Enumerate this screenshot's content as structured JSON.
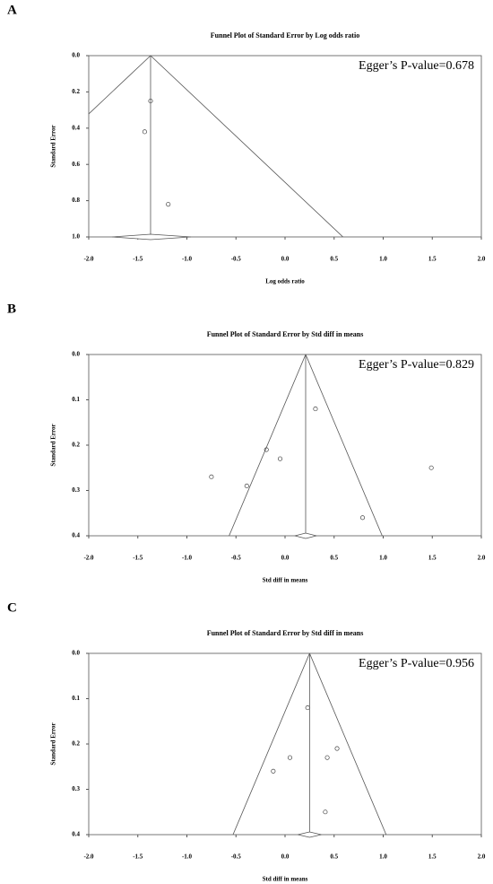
{
  "chart_data": [
    {
      "type": "scatter",
      "panel": "A",
      "title": "Funnel Plot of Standard Error by Log odds ratio",
      "xlabel": "Log odds ratio",
      "ylabel": "Standard Error",
      "annotation": "Egger’s P-value=0.678",
      "x": [
        -1.37,
        -1.43,
        -1.19
      ],
      "y": [
        0.25,
        0.42,
        0.82
      ],
      "summary": {
        "estimate": -1.37,
        "ci": [
          -1.76,
          -0.96
        ]
      },
      "funnel": {
        "apex": -1.37,
        "bottom_left": -3.33,
        "bottom_right": 0.59
      },
      "xlim": [
        -2,
        2
      ],
      "ylim": [
        0,
        1
      ],
      "y_inverted": true,
      "xticks": [
        {
          "value": -2,
          "label": "-2.0"
        },
        {
          "value": -1.5,
          "label": "-1.5"
        },
        {
          "value": -1,
          "label": "-1.0"
        },
        {
          "value": -0.5,
          "label": "-0.5"
        },
        {
          "value": 0,
          "label": "0.0"
        },
        {
          "value": 0.5,
          "label": "0.5"
        },
        {
          "value": 1,
          "label": "1.0"
        },
        {
          "value": 1.5,
          "label": "1.5"
        },
        {
          "value": 2,
          "label": "2.0"
        }
      ],
      "yticks": [
        {
          "value": 0,
          "label": "0.0"
        },
        0.2,
        0.4,
        0.6,
        0.8,
        {
          "value": 1,
          "label": "1.0"
        }
      ]
    },
    {
      "type": "scatter",
      "panel": "B",
      "title": "Funnel Plot of Standard Error by Std diff in means",
      "xlabel": "Std diff in means",
      "ylabel": "Standard Error",
      "annotation": "Egger’s P-value=0.829",
      "x": [
        0.31,
        -0.19,
        -0.05,
        -0.75,
        -0.39,
        0.79,
        1.49
      ],
      "y": [
        0.12,
        0.21,
        0.23,
        0.27,
        0.29,
        0.36,
        0.25
      ],
      "summary": {
        "estimate": 0.21,
        "ci": [
          0.1,
          0.32
        ]
      },
      "funnel": {
        "apex": 0.21,
        "bottom_left": -0.57,
        "bottom_right": 0.99
      },
      "xlim": [
        -2,
        2
      ],
      "ylim": [
        0,
        0.4
      ],
      "y_inverted": true,
      "xticks": [
        {
          "value": -2,
          "label": "-2.0"
        },
        {
          "value": -1.5,
          "label": "-1.5"
        },
        {
          "value": -1,
          "label": "-1.0"
        },
        {
          "value": -0.5,
          "label": "-0.5"
        },
        {
          "value": 0,
          "label": "0.0"
        },
        {
          "value": 0.5,
          "label": "0.5"
        },
        {
          "value": 1,
          "label": "1.0"
        },
        {
          "value": 1.5,
          "label": "1.5"
        },
        {
          "value": 2,
          "label": "2.0"
        }
      ],
      "yticks": [
        {
          "value": 0,
          "label": "0.0"
        },
        0.1,
        0.2,
        0.3,
        0.4
      ]
    },
    {
      "type": "scatter",
      "panel": "C",
      "title": "Funnel Plot of Standard Error by Std diff in means",
      "xlabel": "Std diff in means",
      "ylabel": "Standard Error",
      "annotation": "Egger’s P-value=0.956",
      "x": [
        0.23,
        0.05,
        -0.12,
        0.43,
        0.53,
        0.41
      ],
      "y": [
        0.12,
        0.23,
        0.26,
        0.23,
        0.21,
        0.35
      ],
      "summary": {
        "estimate": 0.25,
        "ci": [
          0.13,
          0.37
        ]
      },
      "funnel": {
        "apex": 0.25,
        "bottom_left": -0.53,
        "bottom_right": 1.03
      },
      "xlim": [
        -2,
        2
      ],
      "ylim": [
        0,
        0.4
      ],
      "y_inverted": true,
      "xticks": [
        {
          "value": -2,
          "label": "-2.0"
        },
        {
          "value": -1.5,
          "label": "-1.5"
        },
        {
          "value": -1,
          "label": "-1.0"
        },
        {
          "value": -0.5,
          "label": "-0.5"
        },
        {
          "value": 0,
          "label": "0.0"
        },
        {
          "value": 0.5,
          "label": "0.5"
        },
        {
          "value": 1,
          "label": "1.0"
        },
        {
          "value": 1.5,
          "label": "1.5"
        },
        {
          "value": 2,
          "label": "2.0"
        }
      ],
      "yticks": [
        {
          "value": 0,
          "label": "0.0"
        },
        0.1,
        0.2,
        0.3,
        0.4
      ]
    }
  ]
}
